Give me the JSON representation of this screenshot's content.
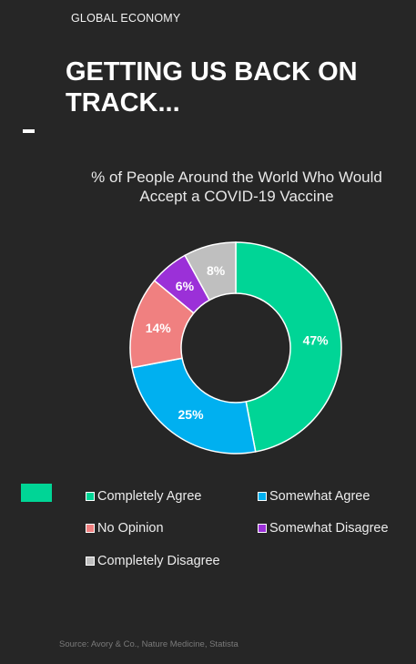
{
  "header": {
    "section_label": "GLOBAL ECONOMY",
    "headline": "GETTING US BACK ON TRACK..."
  },
  "chart_data": {
    "type": "pie",
    "donut": true,
    "title": "% of People Around the World Who Would Accept a COVID-19 Vaccine",
    "legend_position": "bottom",
    "categories": [
      "Completely Agree",
      "Somewhat Agree",
      "No Opinion",
      "Somewhat Disagree",
      "Completely Disagree"
    ],
    "values": [
      47,
      25,
      14,
      6,
      8
    ],
    "data_labels": [
      "47%",
      "25%",
      "14%",
      "6%",
      "8%"
    ],
    "colors": [
      "#00d596",
      "#00b0f0",
      "#f08080",
      "#9b30d8",
      "#bfbfbf"
    ]
  },
  "source": "Source: Avory & Co., Nature Medicine, Statista"
}
